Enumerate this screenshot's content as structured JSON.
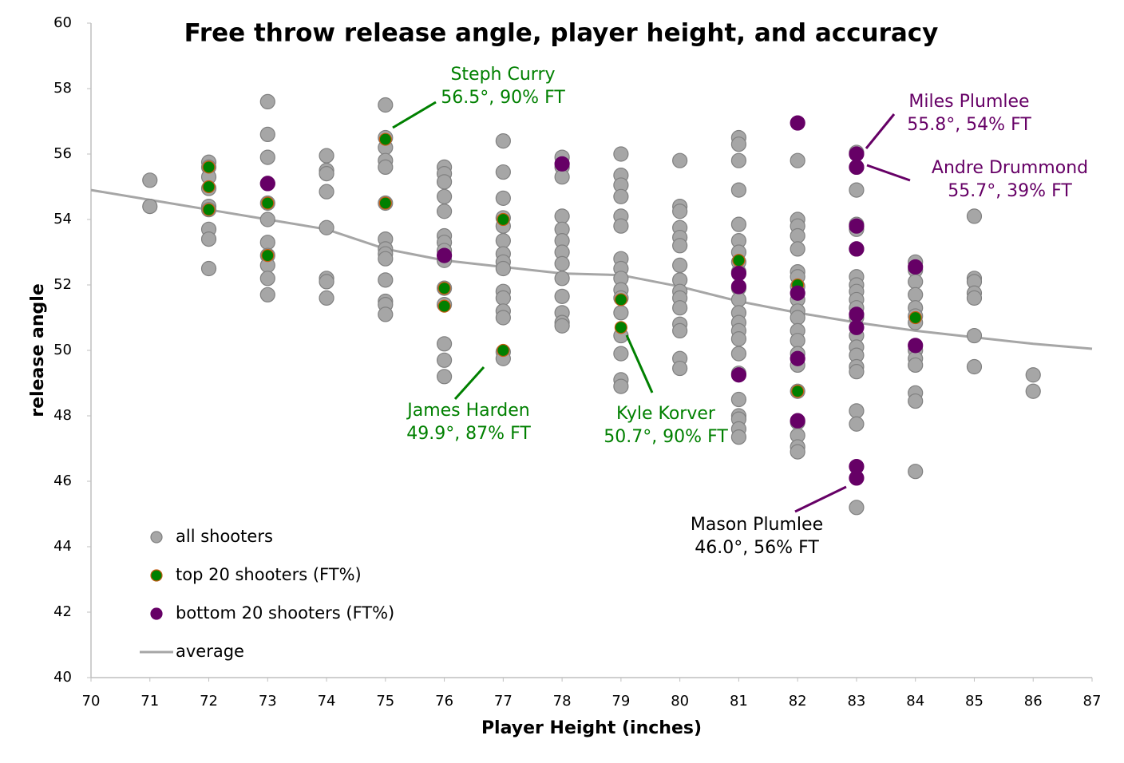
{
  "chart_data": {
    "type": "scatter",
    "title": "Free throw release angle, player height, and accuracy",
    "x_label": "Player Height (inches)",
    "y_label": "release angle",
    "xlim": [
      70,
      87
    ],
    "ylim": [
      40,
      60
    ],
    "xticks": [
      70,
      71,
      72,
      73,
      74,
      75,
      76,
      77,
      78,
      79,
      80,
      81,
      82,
      83,
      84,
      85,
      86,
      87
    ],
    "yticks": [
      40,
      42,
      44,
      46,
      48,
      50,
      52,
      54,
      56,
      58,
      60
    ],
    "grid": false,
    "legend": "lower left",
    "series": [
      {
        "name": "all shooters",
        "kind": "points",
        "color": "#a6a6a6",
        "edgecolor": "#808080",
        "x": [
          71,
          71,
          72,
          72,
          72,
          72,
          72,
          72,
          72,
          72,
          72,
          73,
          73,
          73,
          73,
          73,
          73,
          73,
          73,
          73,
          73,
          73,
          74,
          74,
          74,
          74,
          74,
          74,
          74,
          74,
          75,
          75,
          75,
          75,
          75,
          75,
          75,
          75,
          75,
          75,
          75,
          75,
          75,
          75,
          76,
          76,
          76,
          76,
          76,
          76,
          76,
          76,
          76,
          76,
          76,
          76,
          76,
          76,
          77,
          77,
          77,
          77,
          77,
          77,
          77,
          77,
          77,
          77,
          77,
          77,
          77,
          77,
          77,
          78,
          78,
          78,
          78,
          78,
          78,
          78,
          78,
          78,
          78,
          78,
          78,
          78,
          79,
          79,
          79,
          79,
          79,
          79,
          79,
          79,
          79,
          79,
          79,
          79,
          79,
          79,
          79,
          79,
          80,
          80,
          80,
          80,
          80,
          80,
          80,
          80,
          80,
          80,
          80,
          80,
          80,
          80,
          80,
          81,
          81,
          81,
          81,
          81,
          81,
          81,
          81,
          81,
          81,
          81,
          81,
          81,
          81,
          81,
          81,
          81,
          81,
          81,
          81,
          81,
          81,
          82,
          82,
          82,
          82,
          82,
          82,
          82,
          82,
          82,
          82,
          82,
          82,
          82,
          82,
          82,
          82,
          82,
          82,
          82,
          82,
          83,
          83,
          83,
          83,
          83,
          83,
          83,
          83,
          83,
          83,
          83,
          83,
          83,
          83,
          83,
          83,
          83,
          83,
          83,
          83,
          84,
          84,
          84,
          84,
          84,
          84,
          84,
          84,
          84,
          84,
          84,
          84,
          84,
          85,
          85,
          85,
          85,
          85,
          85,
          85,
          86,
          86
        ],
        "values": [
          55.2,
          54.4,
          55.75,
          55.6,
          55.3,
          54.95,
          54.4,
          54.3,
          53.7,
          53.4,
          52.5,
          57.6,
          56.6,
          55.9,
          55.1,
          54.5,
          54.0,
          53.3,
          52.9,
          52.6,
          52.2,
          51.7,
          55.95,
          55.5,
          55.4,
          54.85,
          53.75,
          52.2,
          52.1,
          51.6,
          57.5,
          56.5,
          56.2,
          55.8,
          55.6,
          54.5,
          53.4,
          53.1,
          52.95,
          52.8,
          52.15,
          51.5,
          51.4,
          51.1,
          55.6,
          55.4,
          55.15,
          54.7,
          54.25,
          53.5,
          53.3,
          53.05,
          52.75,
          51.9,
          51.4,
          50.2,
          49.7,
          49.2,
          56.4,
          55.45,
          54.65,
          54.05,
          53.8,
          53.35,
          52.95,
          52.7,
          52.5,
          51.8,
          51.6,
          51.2,
          51.0,
          49.95,
          49.75,
          55.9,
          55.6,
          55.3,
          54.1,
          53.7,
          53.35,
          53.0,
          52.65,
          52.2,
          51.65,
          51.15,
          50.85,
          50.75,
          56.0,
          55.35,
          55.05,
          54.7,
          54.1,
          53.8,
          52.8,
          52.5,
          52.2,
          51.85,
          51.6,
          51.15,
          50.45,
          49.9,
          49.1,
          48.9,
          55.8,
          54.4,
          54.25,
          53.75,
          53.45,
          53.2,
          52.6,
          52.15,
          51.8,
          51.6,
          51.3,
          50.8,
          50.6,
          49.75,
          49.45,
          56.5,
          56.3,
          55.8,
          54.9,
          53.85,
          53.35,
          53.0,
          52.7,
          52.4,
          51.9,
          51.55,
          51.15,
          50.85,
          50.6,
          50.35,
          49.9,
          49.3,
          48.5,
          48.0,
          47.9,
          47.6,
          47.35,
          55.8,
          54.0,
          53.8,
          53.5,
          53.1,
          52.4,
          52.25,
          51.95,
          51.55,
          51.2,
          51.0,
          50.6,
          50.3,
          49.9,
          49.55,
          48.75,
          47.8,
          47.4,
          47.05,
          46.9,
          56.05,
          55.6,
          54.9,
          53.85,
          53.7,
          53.1,
          52.25,
          52.0,
          51.8,
          51.55,
          51.3,
          51.0,
          50.45,
          50.1,
          49.85,
          49.5,
          49.35,
          48.15,
          47.75,
          45.2,
          52.7,
          52.45,
          52.1,
          51.7,
          51.3,
          51.05,
          50.85,
          50.0,
          49.75,
          49.55,
          48.7,
          48.45,
          46.3,
          54.1,
          52.2,
          52.1,
          51.75,
          51.6,
          50.45,
          49.5,
          49.25,
          48.75
        ]
      },
      {
        "name": "top 20 shooters (FT%)",
        "kind": "points",
        "color": "#008000",
        "edgecolor": "#c55a11",
        "x": [
          72,
          72,
          72,
          73,
          73,
          75,
          75,
          76,
          76,
          77,
          77,
          79,
          79,
          81,
          82,
          82,
          84
        ],
        "values": [
          55.6,
          55.0,
          54.3,
          54.5,
          52.9,
          56.45,
          54.5,
          51.9,
          51.35,
          54.0,
          50.0,
          51.55,
          50.7,
          52.75,
          52.0,
          48.75,
          51.0
        ]
      },
      {
        "name": "bottom 20 shooters (FT%)",
        "kind": "points",
        "color": "#660066",
        "edgecolor": "#660066",
        "x": [
          73,
          76,
          78,
          81,
          81,
          81,
          82,
          82,
          82,
          82,
          83,
          83,
          83,
          83,
          83,
          83,
          83,
          83,
          84,
          84
        ],
        "values": [
          55.1,
          52.9,
          55.7,
          52.35,
          51.95,
          49.25,
          56.95,
          51.75,
          49.75,
          47.85,
          56.0,
          55.6,
          53.8,
          53.1,
          51.1,
          50.7,
          46.45,
          46.1,
          52.55,
          50.15
        ]
      },
      {
        "name": "average",
        "kind": "line",
        "color": "#a6a6a6",
        "x": [
          70,
          72,
          73,
          74,
          75,
          76,
          77,
          78,
          79,
          80,
          81,
          82,
          83,
          84,
          85,
          86,
          87
        ],
        "values": [
          54.9,
          54.3,
          54.0,
          53.7,
          53.1,
          52.75,
          52.55,
          52.35,
          52.3,
          51.95,
          51.5,
          51.15,
          50.85,
          50.6,
          50.4,
          50.2,
          50.05
        ]
      }
    ],
    "annotations": [
      {
        "lines": [
          "Steph Curry",
          "56.5°, 90% FT"
        ],
        "color": "#008000"
      },
      {
        "lines": [
          "James Harden",
          "49.9°, 87% FT"
        ],
        "color": "#008000"
      },
      {
        "lines": [
          "Kyle Korver",
          "50.7°, 90% FT"
        ],
        "color": "#008000"
      },
      {
        "lines": [
          "Miles Plumlee",
          "55.8°, 54% FT"
        ],
        "color": "#660066"
      },
      {
        "lines": [
          "Andre Drummond",
          "55.7°, 39% FT"
        ],
        "color": "#660066"
      },
      {
        "lines": [
          "Mason Plumlee",
          "46.0°, 56% FT"
        ],
        "color": "#000000"
      }
    ]
  }
}
